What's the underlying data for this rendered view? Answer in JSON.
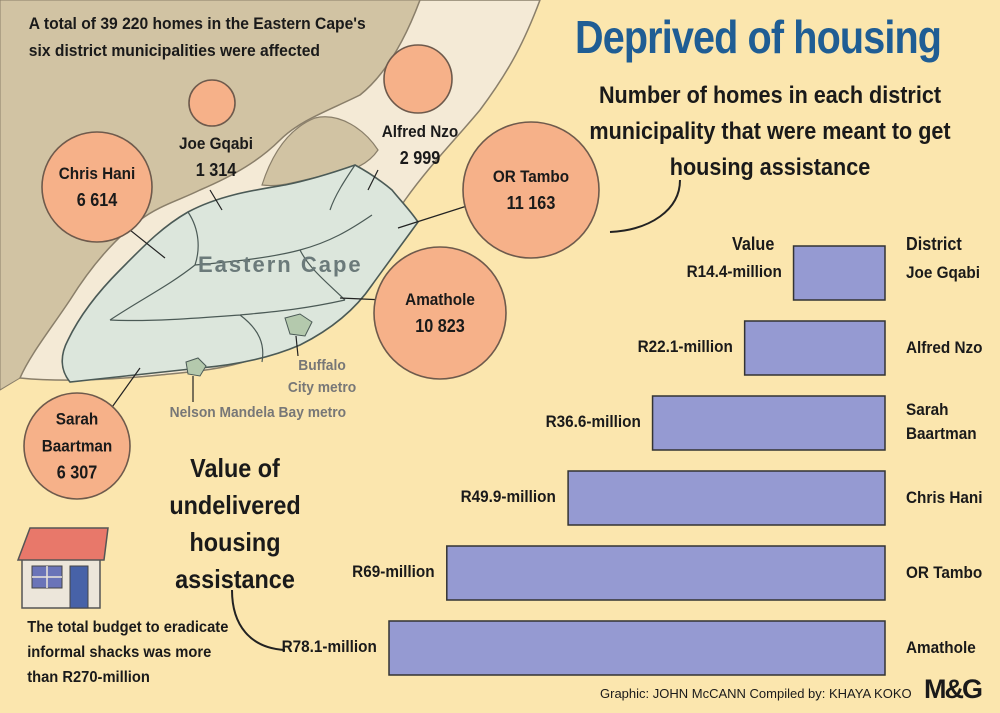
{
  "header": {
    "title": "Deprived of housing",
    "subtitle": "Number of homes in each district municipality that were meant to get housing assistance"
  },
  "intro_text": "A total of 39 220 homes in the Eastern Cape's six district municipalities were affected",
  "map": {
    "region_label": "Eastern Cape",
    "metros": [
      "Buffalo City metro",
      "Nelson Mandela Bay metro"
    ],
    "colors": {
      "province": "#dce6dc",
      "neighbours": "#d1c3a3",
      "coast": "#f4ead6",
      "sea": "#fbe6ae",
      "circle": "#f6b189"
    }
  },
  "circles": [
    {
      "name": "Chris Hani",
      "value": "6 614"
    },
    {
      "name": "Joe Gqabi",
      "value": "1 314"
    },
    {
      "name": "Alfred Nzo",
      "value": "2 999"
    },
    {
      "name": "OR Tambo",
      "value": "11 163"
    },
    {
      "name": "Amathole",
      "value": "10 823"
    },
    {
      "name": "Sarah Baartman",
      "value": "6 307"
    }
  ],
  "value_section_title": "Value of undelivered housing assistance",
  "budget_note": "The total budget to eradicate informal shacks was more than R270-million",
  "chart_headers": {
    "value": "Value",
    "district": "District"
  },
  "chart_data": {
    "type": "bar",
    "orientation": "horizontal",
    "unit": "R million",
    "categories": [
      "Joe Gqabi",
      "Alfred Nzo",
      "Sarah Baartman",
      "Chris Hani",
      "OR Tambo",
      "Amathole"
    ],
    "values": [
      14.4,
      22.1,
      36.6,
      49.9,
      69,
      78.1
    ],
    "data_labels": [
      "R14.4-million",
      "R22.1-million",
      "R36.6-million",
      "R49.9-million",
      "R69-million",
      "R78.1-million"
    ],
    "bar_color": "#959ad2"
  },
  "credit": "Graphic: JOHN McCANN  Compiled by: KHAYA KOKO",
  "logo": "M&G"
}
